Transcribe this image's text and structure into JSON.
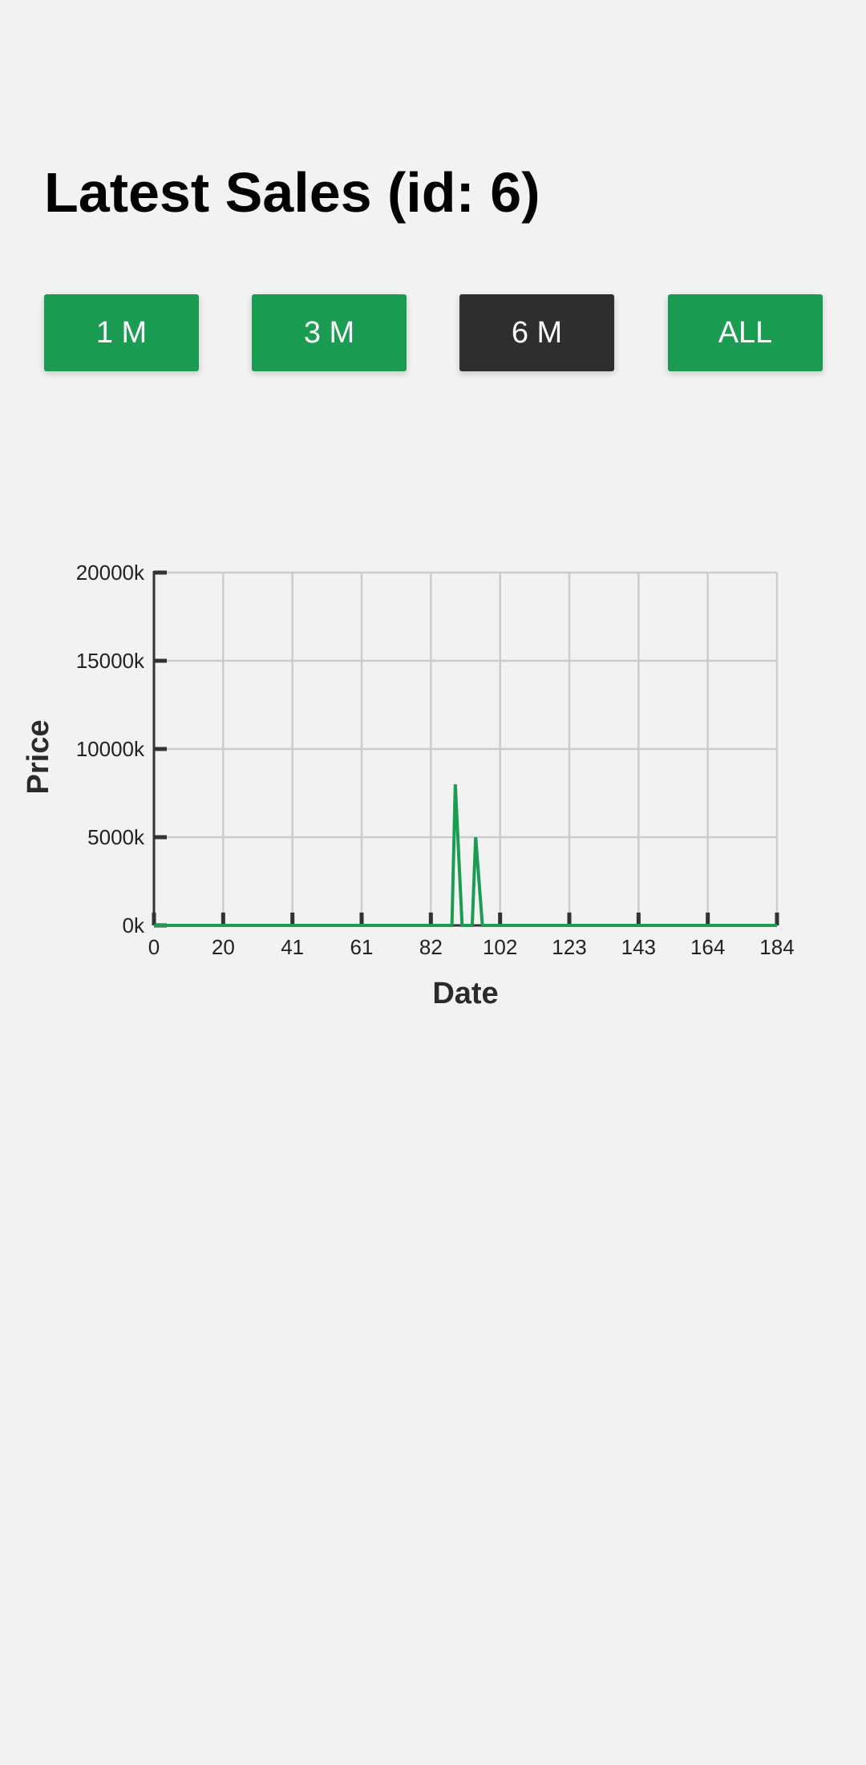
{
  "header": {
    "title": "Latest Sales (id: 6)"
  },
  "range_buttons": [
    {
      "label": "1 M",
      "active": false
    },
    {
      "label": "3 M",
      "active": false
    },
    {
      "label": "6 M",
      "active": true
    },
    {
      "label": "ALL",
      "active": false
    }
  ],
  "colors": {
    "accent": "#1a9c53",
    "active": "#2e2e2e",
    "background": "#f2f2f2",
    "grid": "#cccccc",
    "axis": "#333333"
  },
  "chart_data": {
    "type": "line",
    "xlabel": "Date",
    "ylabel": "Price",
    "xlim": [
      0,
      184
    ],
    "ylim": [
      0,
      20000
    ],
    "x_ticks": [
      "0",
      "20",
      "41",
      "61",
      "82",
      "102",
      "123",
      "143",
      "164",
      "184"
    ],
    "y_ticks": [
      "0k",
      "5000k",
      "10000k",
      "15000k",
      "20000k"
    ],
    "grid": true,
    "series": [
      {
        "color": "#1a9c53",
        "x": [
          0,
          88,
          89,
          91,
          94,
          95,
          97,
          184
        ],
        "y": [
          0,
          0,
          8000,
          0,
          0,
          5000,
          0,
          0
        ]
      }
    ]
  }
}
